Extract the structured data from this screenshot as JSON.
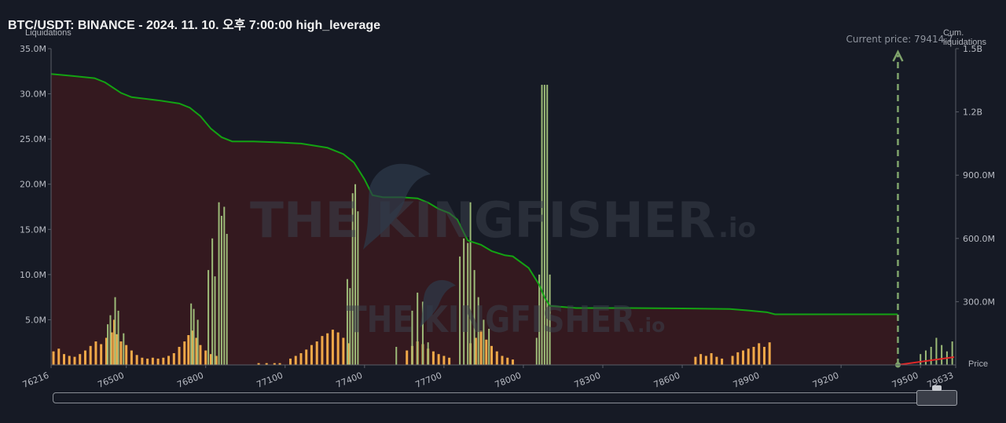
{
  "header": {
    "title": "BTC/USDT: BINANCE - 2024. 11. 10. 오후 7:00:00 high_leverage",
    "left_axis_label": "Liquidations",
    "right_axis_label": "Cum. liquidations",
    "price_axis_label": "Price",
    "current_price_text": "Current price: 79414.7"
  },
  "watermark": {
    "text_main": "THE KINGFISHER",
    "text_suffix": ".io"
  },
  "colors": {
    "background": "#161a25",
    "short_bar": "#f0a848",
    "long_bar": "#9dbb78",
    "cum_line": "#13a313",
    "cum_fill": "#3a1a1f",
    "right_line": "#e02828",
    "current_price_arrow": "#7fa36b"
  },
  "chart_data": {
    "type": "bar",
    "title": "BTC/USDT: BINANCE - 2024. 11. 10. 오후 7:00:00 high_leverage",
    "ylabel": "Liquidations",
    "y2label": "Cum. liquidations",
    "xlabel": "Price",
    "xlim": [
      76216,
      79633
    ],
    "ylim": [
      0,
      35000000
    ],
    "y2lim": [
      0,
      1500000000
    ],
    "y_ticks": [
      "5.0M",
      "10.0M",
      "15.0M",
      "20.0M",
      "25.0M",
      "30.0M",
      "35.0M"
    ],
    "y_tick_values": [
      5000000,
      10000000,
      15000000,
      20000000,
      25000000,
      30000000,
      35000000
    ],
    "y2_ticks": [
      "300.0M",
      "600.0M",
      "900.0M",
      "1.2B",
      "1.5B"
    ],
    "y2_tick_values": [
      300000000,
      600000000,
      900000000,
      1200000000,
      1500000000
    ],
    "x_ticks": [
      "76216",
      "76500",
      "76800",
      "77100",
      "77400",
      "77700",
      "78000",
      "78300",
      "78600",
      "78900",
      "79200",
      "79500",
      "79633"
    ],
    "x_tick_values": [
      76216,
      76500,
      76800,
      77100,
      77400,
      77700,
      78000,
      78300,
      78600,
      78900,
      79200,
      79500,
      79633
    ],
    "current_price": 79414.7,
    "grid": false,
    "short_bars": [
      [
        76225,
        1.5
      ],
      [
        76245,
        1.8
      ],
      [
        76265,
        1.2
      ],
      [
        76285,
        1.0
      ],
      [
        76305,
        0.9
      ],
      [
        76325,
        1.2
      ],
      [
        76345,
        1.6
      ],
      [
        76365,
        2.1
      ],
      [
        76385,
        2.6
      ],
      [
        76405,
        2.3
      ],
      [
        76425,
        3.0
      ],
      [
        76445,
        3.6
      ],
      [
        76455,
        5.0
      ],
      [
        76465,
        3.4
      ],
      [
        76480,
        2.6
      ],
      [
        76500,
        2.2
      ],
      [
        76520,
        1.6
      ],
      [
        76540,
        1.1
      ],
      [
        76560,
        0.8
      ],
      [
        76580,
        0.7
      ],
      [
        76600,
        0.8
      ],
      [
        76620,
        0.7
      ],
      [
        76640,
        0.8
      ],
      [
        76660,
        1.0
      ],
      [
        76680,
        1.3
      ],
      [
        76700,
        2.0
      ],
      [
        76720,
        2.6
      ],
      [
        76735,
        3.3
      ],
      [
        76750,
        3.8
      ],
      [
        76765,
        3.0
      ],
      [
        76780,
        2.2
      ],
      [
        76800,
        1.6
      ],
      [
        76820,
        1.2
      ],
      [
        76840,
        1.0
      ],
      [
        77000,
        0.2
      ],
      [
        77030,
        0.2
      ],
      [
        77060,
        0.2
      ],
      [
        77080,
        0.2
      ],
      [
        77120,
        0.7
      ],
      [
        77140,
        1.0
      ],
      [
        77160,
        1.3
      ],
      [
        77180,
        1.7
      ],
      [
        77200,
        2.2
      ],
      [
        77220,
        2.6
      ],
      [
        77240,
        3.2
      ],
      [
        77260,
        3.5
      ],
      [
        77280,
        3.9
      ],
      [
        77300,
        3.6
      ],
      [
        77320,
        3.0
      ],
      [
        77340,
        2.4
      ],
      [
        77560,
        1.6
      ],
      [
        77580,
        2.1
      ],
      [
        77600,
        2.6
      ],
      [
        77620,
        2.3
      ],
      [
        77640,
        1.8
      ],
      [
        77660,
        1.5
      ],
      [
        77680,
        1.2
      ],
      [
        77700,
        1.0
      ],
      [
        77720,
        0.8
      ],
      [
        77800,
        2.4
      ],
      [
        77820,
        3.0
      ],
      [
        77840,
        3.8
      ],
      [
        77860,
        2.8
      ],
      [
        77880,
        2.1
      ],
      [
        77900,
        1.5
      ],
      [
        77920,
        1.0
      ],
      [
        77940,
        0.8
      ],
      [
        77960,
        0.6
      ],
      [
        78650,
        0.9
      ],
      [
        78670,
        1.2
      ],
      [
        78690,
        1.0
      ],
      [
        78710,
        1.3
      ],
      [
        78730,
        0.9
      ],
      [
        78750,
        0.7
      ],
      [
        78790,
        1.0
      ],
      [
        78810,
        1.4
      ],
      [
        78830,
        1.6
      ],
      [
        78850,
        1.8
      ],
      [
        78870,
        2.0
      ],
      [
        78890,
        2.4
      ],
      [
        78910,
        2.0
      ],
      [
        78930,
        2.5
      ]
    ],
    "long_bars": [
      [
        76430,
        4.5
      ],
      [
        76440,
        5.5
      ],
      [
        76458,
        7.5
      ],
      [
        76470,
        6.0
      ],
      [
        76490,
        3.5
      ],
      [
        76745,
        6.8
      ],
      [
        76755,
        6.2
      ],
      [
        76770,
        5.0
      ],
      [
        76810,
        10.5
      ],
      [
        76825,
        14.0
      ],
      [
        76835,
        9.8
      ],
      [
        76850,
        18.0
      ],
      [
        76860,
        16.5
      ],
      [
        76870,
        17.5
      ],
      [
        76880,
        14.5
      ],
      [
        77335,
        9.5
      ],
      [
        77345,
        8.5
      ],
      [
        77355,
        19.0
      ],
      [
        77365,
        20.0
      ],
      [
        77375,
        17.0
      ],
      [
        77520,
        2.0
      ],
      [
        77580,
        6.0
      ],
      [
        77600,
        8.0
      ],
      [
        77620,
        7.0
      ],
      [
        77640,
        2.5
      ],
      [
        77760,
        12.0
      ],
      [
        77775,
        14.0
      ],
      [
        77790,
        13.5
      ],
      [
        77800,
        18.0
      ],
      [
        77815,
        10.5
      ],
      [
        77830,
        7.5
      ],
      [
        77850,
        5.0
      ],
      [
        77870,
        4.0
      ],
      [
        78050,
        3.0
      ],
      [
        78060,
        10.0
      ],
      [
        78070,
        31.0
      ],
      [
        78080,
        31.0
      ],
      [
        78090,
        31.0
      ],
      [
        78100,
        10.0
      ],
      [
        79500,
        1.2
      ],
      [
        79520,
        1.6
      ],
      [
        79540,
        2.0
      ],
      [
        79560,
        3.0
      ],
      [
        79580,
        2.2
      ],
      [
        79600,
        1.5
      ],
      [
        79620,
        2.6
      ]
    ],
    "cumulative": [
      [
        76216,
        1380
      ],
      [
        76300,
        1370
      ],
      [
        76380,
        1360
      ],
      [
        76420,
        1340
      ],
      [
        76480,
        1290
      ],
      [
        76520,
        1270
      ],
      [
        76620,
        1255
      ],
      [
        76700,
        1240
      ],
      [
        76740,
        1220
      ],
      [
        76780,
        1180
      ],
      [
        76820,
        1120
      ],
      [
        76860,
        1080
      ],
      [
        76900,
        1060
      ],
      [
        76980,
        1060
      ],
      [
        77080,
        1055
      ],
      [
        77160,
        1050
      ],
      [
        77260,
        1030
      ],
      [
        77320,
        1000
      ],
      [
        77360,
        960
      ],
      [
        77400,
        880
      ],
      [
        77430,
        805
      ],
      [
        77470,
        795
      ],
      [
        77540,
        795
      ],
      [
        77600,
        790
      ],
      [
        77640,
        770
      ],
      [
        77680,
        740
      ],
      [
        77720,
        720
      ],
      [
        77750,
        690
      ],
      [
        77790,
        590
      ],
      [
        77840,
        570
      ],
      [
        77880,
        540
      ],
      [
        77930,
        520
      ],
      [
        77960,
        515
      ],
      [
        78020,
        460
      ],
      [
        78060,
        380
      ],
      [
        78080,
        320
      ],
      [
        78100,
        280
      ],
      [
        78200,
        270
      ],
      [
        78400,
        270
      ],
      [
        78600,
        268
      ],
      [
        78780,
        265
      ],
      [
        78850,
        258
      ],
      [
        78920,
        250
      ],
      [
        78950,
        240
      ],
      [
        79000,
        240
      ],
      [
        79200,
        240
      ],
      [
        79414,
        240
      ]
    ],
    "cumulative_units": "millions"
  }
}
